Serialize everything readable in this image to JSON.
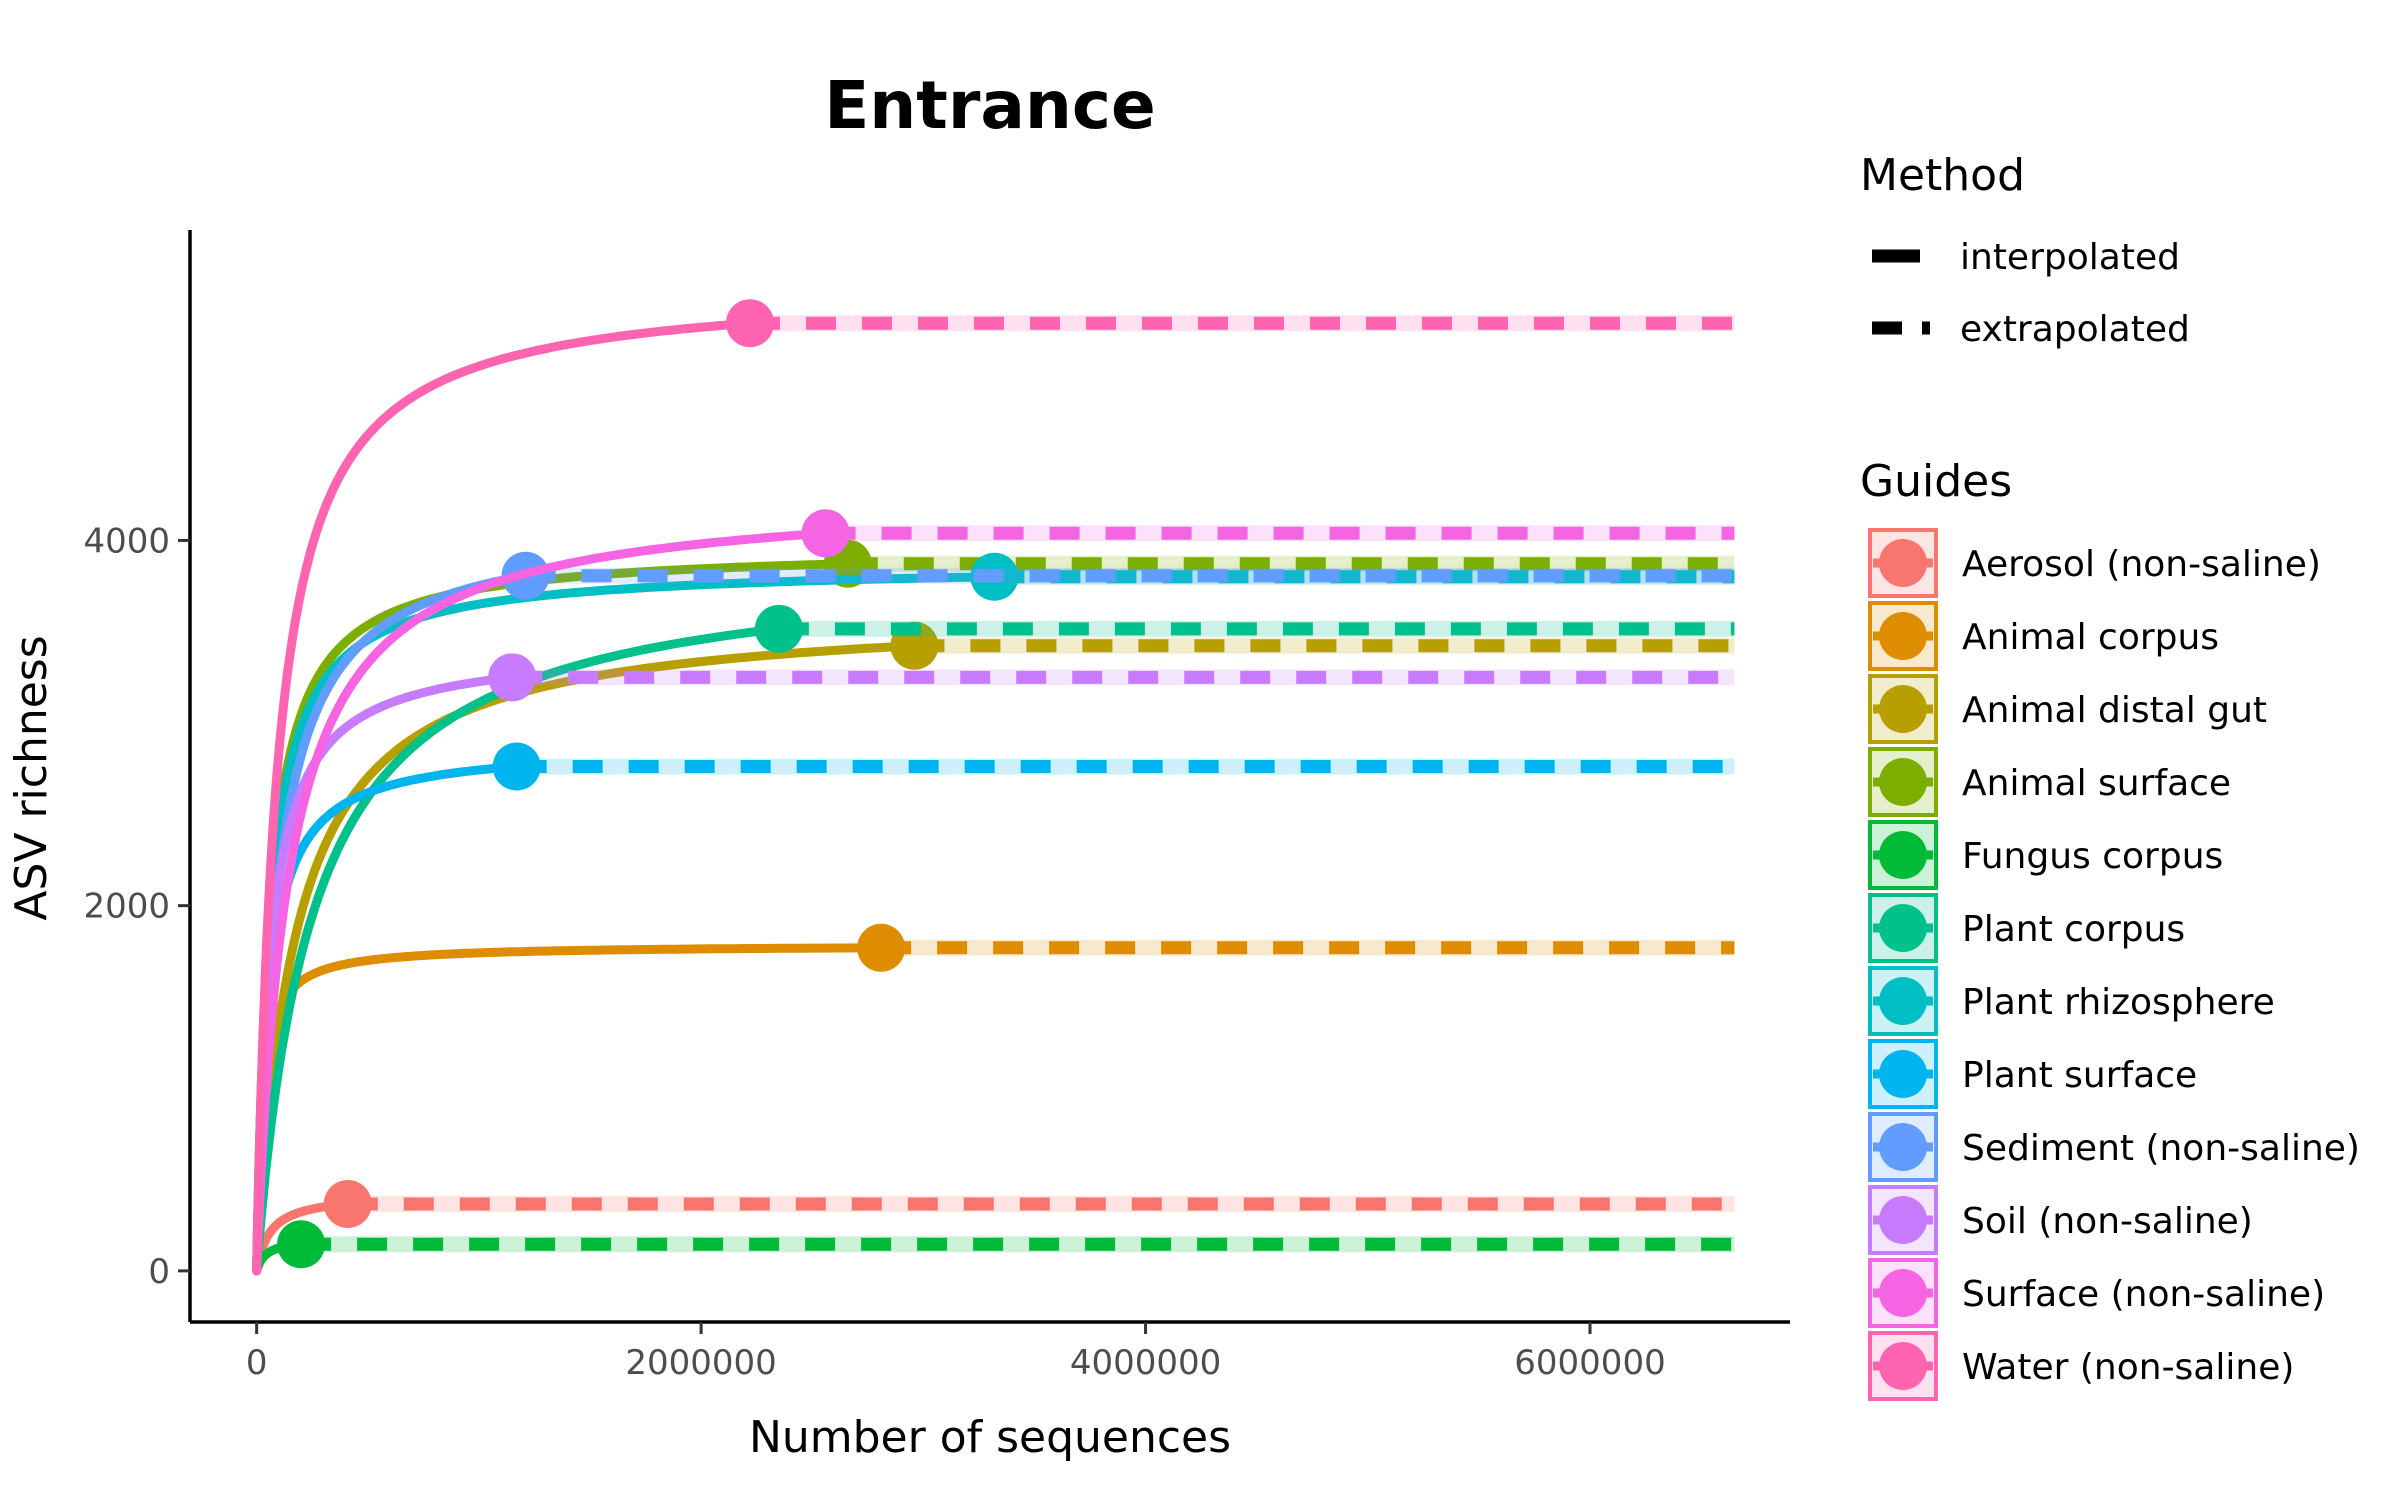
{
  "chart_data": {
    "type": "line",
    "title": "Entrance",
    "xlabel": "Number of sequences",
    "ylabel": "ASV richness",
    "xlim": [
      -300000,
      6900000
    ],
    "ylim": [
      -280,
      5700
    ],
    "x_ticks": [
      0,
      2000000,
      4000000,
      6000000
    ],
    "x_tick_labels": [
      "0",
      "2000000",
      "4000000",
      "6000000"
    ],
    "y_ticks": [
      0,
      2000,
      4000
    ],
    "y_tick_labels": [
      "0",
      "2000",
      "4000"
    ],
    "extrapolation_end": 6650000,
    "grid": false,
    "legend_placement": "right",
    "method_legend": {
      "title": "Method",
      "items": [
        "interpolated",
        "extrapolated"
      ]
    },
    "guides_legend": {
      "title": "Guides"
    },
    "series": [
      {
        "name": "Aerosol (non-saline)",
        "color": "#F8766D",
        "observed_x": 410000,
        "asymptote": 420,
        "k": 60000
      },
      {
        "name": "Animal corpus",
        "color": "#DE8C00",
        "observed_x": 2810000,
        "asymptote": 1785,
        "k": 25000
      },
      {
        "name": "Animal distal gut",
        "color": "#B79F00",
        "observed_x": 2960000,
        "asymptote": 3620,
        "k": 170000
      },
      {
        "name": "Animal surface",
        "color": "#7CAE00",
        "observed_x": 2660000,
        "asymptote": 3960,
        "k": 60000
      },
      {
        "name": "Fungus corpus",
        "color": "#00BA38",
        "observed_x": 200000,
        "asymptote": 175,
        "k": 40000
      },
      {
        "name": "Plant corpus",
        "color": "#00C08B",
        "observed_x": 2350000,
        "asymptote": 3890,
        "k": 250000
      },
      {
        "name": "Plant rhizosphere",
        "color": "#00BFC4",
        "observed_x": 3320000,
        "asymptote": 3870,
        "k": 60000
      },
      {
        "name": "Plant surface",
        "color": "#00B4F0",
        "observed_x": 1170000,
        "asymptote": 2880,
        "k": 50000
      },
      {
        "name": "Sediment (non-saline)",
        "color": "#619CFF",
        "observed_x": 1210000,
        "asymptote": 4090,
        "k": 90000
      },
      {
        "name": "Soil (non-saline)",
        "color": "#C77CFF",
        "observed_x": 1150000,
        "asymptote": 3420,
        "k": 60000
      },
      {
        "name": "Surface (non-saline)",
        "color": "#F564E3",
        "observed_x": 2560000,
        "asymptote": 4260,
        "k": 140000
      },
      {
        "name": "Water (non-saline)",
        "color": "#FF64B0",
        "observed_x": 2220000,
        "asymptote": 5400,
        "k": 90000
      }
    ]
  }
}
